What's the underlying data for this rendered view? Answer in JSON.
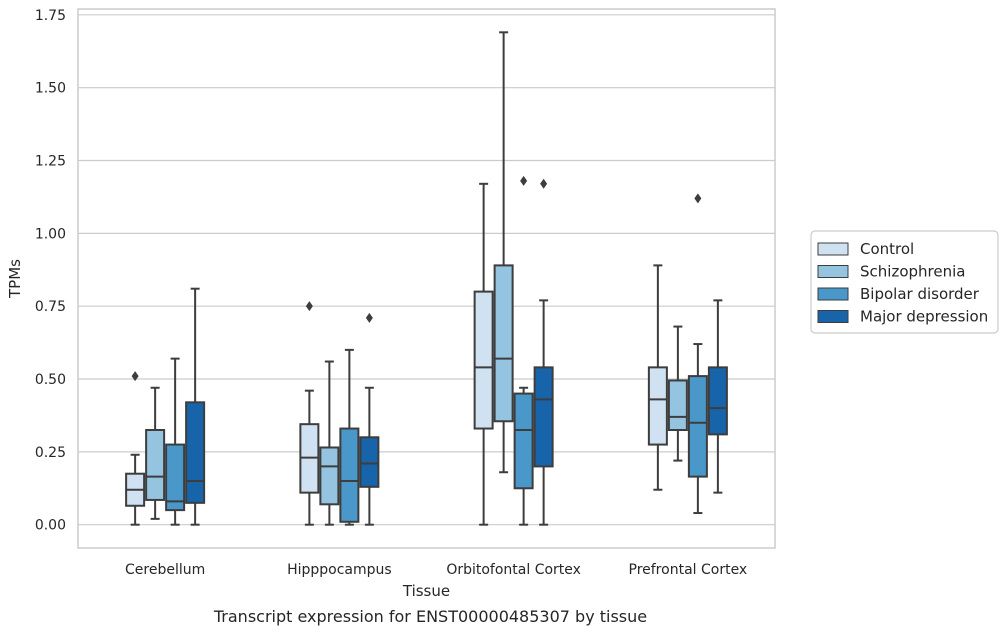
{
  "chart_data": {
    "type": "boxplot",
    "xlabel": "Tissue",
    "ylabel": "TPMs",
    "caption": "Transcript expression for ENST00000485307 by tissue",
    "ylim": [
      -0.08,
      1.77
    ],
    "yticks": [
      "0.00",
      "0.25",
      "0.50",
      "0.75",
      "1.00",
      "1.25",
      "1.50",
      "1.75"
    ],
    "grid": "horizontal",
    "legend_position": "right",
    "categories": [
      "Cerebellum",
      "Hipppocampus",
      "Orbitofontal Cortex",
      "Prefrontal Cortex"
    ],
    "series": [
      {
        "name": "Control",
        "color": "#d0e1f2",
        "boxes": [
          {
            "whislo": 0.0,
            "q1": 0.065,
            "med": 0.12,
            "q3": 0.175,
            "whishi": 0.24,
            "fliers": [
              0.51
            ]
          },
          {
            "whislo": 0.0,
            "q1": 0.11,
            "med": 0.23,
            "q3": 0.345,
            "whishi": 0.46,
            "fliers": [
              0.75
            ]
          },
          {
            "whislo": 0.0,
            "q1": 0.33,
            "med": 0.54,
            "q3": 0.8,
            "whishi": 1.17,
            "fliers": []
          },
          {
            "whislo": 0.12,
            "q1": 0.275,
            "med": 0.43,
            "q3": 0.54,
            "whishi": 0.89,
            "fliers": []
          }
        ]
      },
      {
        "name": "Schizophrenia",
        "color": "#94c4df",
        "boxes": [
          {
            "whislo": 0.02,
            "q1": 0.085,
            "med": 0.165,
            "q3": 0.325,
            "whishi": 0.47,
            "fliers": []
          },
          {
            "whislo": 0.0,
            "q1": 0.07,
            "med": 0.2,
            "q3": 0.265,
            "whishi": 0.56,
            "fliers": []
          },
          {
            "whislo": 0.18,
            "q1": 0.355,
            "med": 0.57,
            "q3": 0.89,
            "whishi": 1.69,
            "fliers": []
          },
          {
            "whislo": 0.22,
            "q1": 0.325,
            "med": 0.37,
            "q3": 0.495,
            "whishi": 0.68,
            "fliers": []
          }
        ]
      },
      {
        "name": "Bipolar disorder",
        "color": "#4a98c9",
        "boxes": [
          {
            "whislo": 0.0,
            "q1": 0.05,
            "med": 0.08,
            "q3": 0.275,
            "whishi": 0.57,
            "fliers": []
          },
          {
            "whislo": 0.0,
            "q1": 0.01,
            "med": 0.15,
            "q3": 0.33,
            "whishi": 0.6,
            "fliers": []
          },
          {
            "whislo": 0.0,
            "q1": 0.125,
            "med": 0.325,
            "q3": 0.45,
            "whishi": 0.47,
            "fliers": [
              1.18
            ]
          },
          {
            "whislo": 0.04,
            "q1": 0.165,
            "med": 0.35,
            "q3": 0.51,
            "whishi": 0.62,
            "fliers": [
              1.12
            ]
          }
        ]
      },
      {
        "name": "Major depression",
        "color": "#1764ab",
        "boxes": [
          {
            "whislo": 0.0,
            "q1": 0.075,
            "med": 0.15,
            "q3": 0.42,
            "whishi": 0.81,
            "fliers": []
          },
          {
            "whislo": 0.0,
            "q1": 0.13,
            "med": 0.21,
            "q3": 0.3,
            "whishi": 0.47,
            "fliers": [
              0.71
            ]
          },
          {
            "whislo": 0.0,
            "q1": 0.2,
            "med": 0.43,
            "q3": 0.54,
            "whishi": 0.77,
            "fliers": [
              1.17
            ]
          },
          {
            "whislo": 0.11,
            "q1": 0.31,
            "med": 0.4,
            "q3": 0.54,
            "whishi": 0.77,
            "fliers": []
          }
        ]
      }
    ]
  }
}
